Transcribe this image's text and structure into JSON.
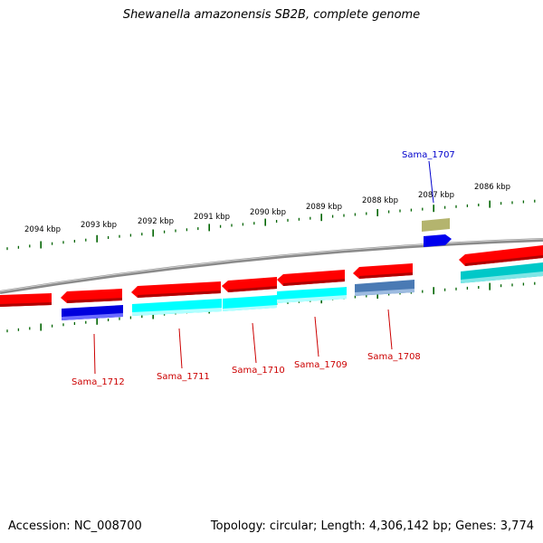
{
  "title": "Shewanella amazonensis SB2B, complete genome",
  "footer": {
    "accession": "Accession: NC_008700",
    "stats": "Topology: circular; Length: 4,306,142 bp; Genes: 3,774"
  },
  "colors": {
    "gene_red": "#ff0000",
    "gene_blue": "#0000dd",
    "gene_cyan": "#00ffff",
    "gene_steel": "#4a7ab4",
    "gene_teal": "#00c8c8",
    "gene_olive": "#b4b46e",
    "tick_green": "#006400",
    "backbone_gray": "#888888",
    "label_red": "#cc0000",
    "label_blue": "#0000cc"
  },
  "kbp_labels": [
    "2094 kbp",
    "2093 kbp",
    "2092 kbp",
    "2091 kbp",
    "2090 kbp",
    "2089 kbp",
    "2088 kbp",
    "2087 kbp",
    "2086 kbp"
  ],
  "gene_labels": [
    "Sama_1712",
    "Sama_1711",
    "Sama_1710",
    "Sama_1709",
    "Sama_1708",
    "Sama_1707"
  ]
}
